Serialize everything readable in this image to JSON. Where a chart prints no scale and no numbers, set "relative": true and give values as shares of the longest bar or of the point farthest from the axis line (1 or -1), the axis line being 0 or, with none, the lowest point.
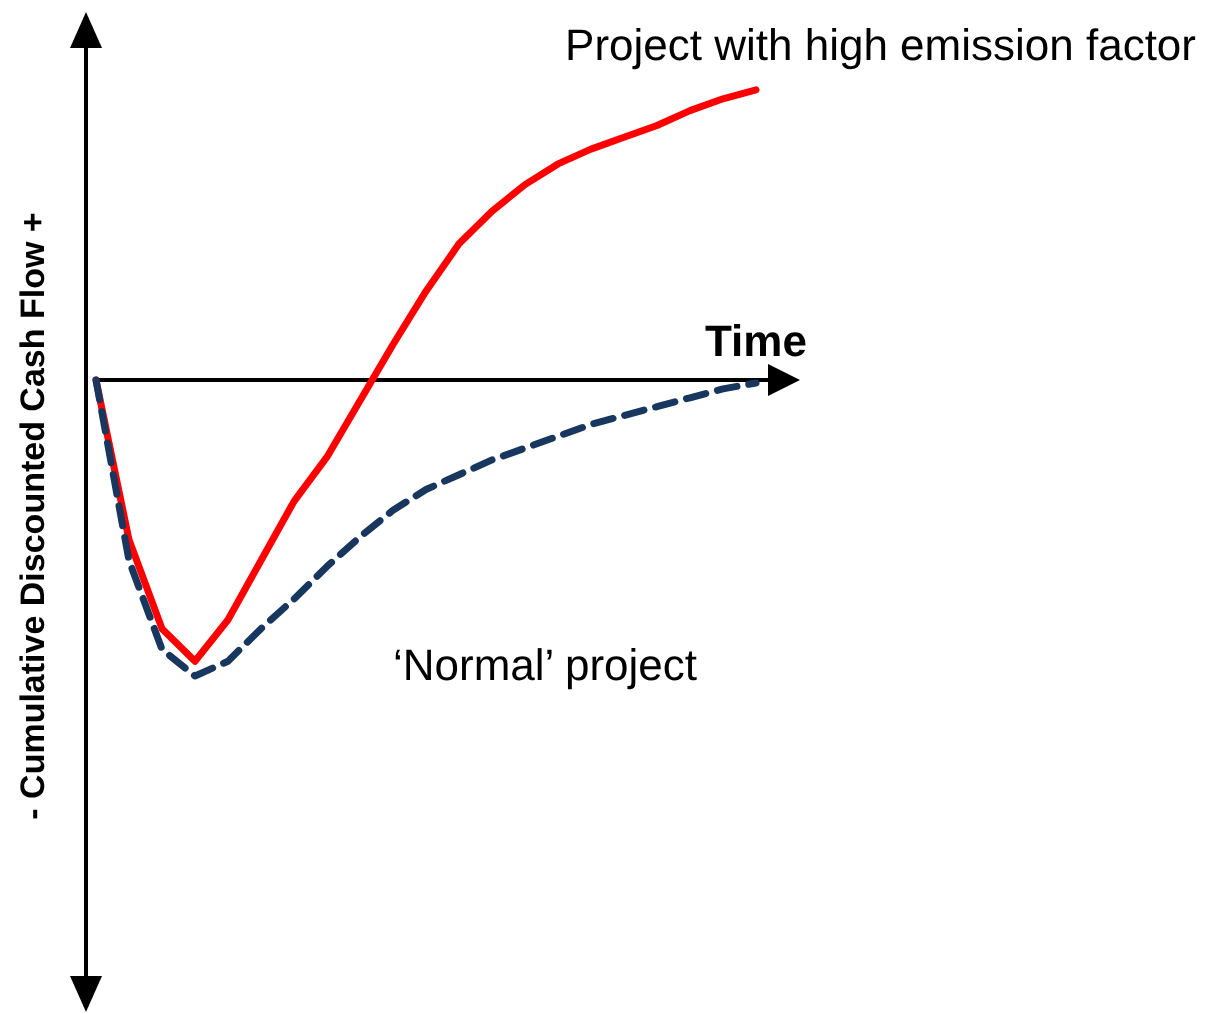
{
  "chart_data": {
    "type": "line",
    "relative": true,
    "xlabel": "Time",
    "ylabel": "- Cumulative Discounted Cash Flow +",
    "categories": [
      null,
      null,
      null,
      null,
      null,
      null,
      null,
      null,
      null,
      null,
      null,
      null,
      null,
      null,
      null,
      null,
      null,
      null,
      null,
      null,
      null
    ],
    "series": [
      {
        "name": "Project with high emission factor",
        "color": "#ff0000",
        "line_style": "solid",
        "values": [
          0,
          -0.54,
          -0.84,
          -0.95,
          -0.81,
          -0.61,
          -0.41,
          -0.26,
          -0.07,
          0.12,
          0.3,
          0.46,
          0.57,
          0.66,
          0.73,
          0.78,
          0.82,
          0.86,
          0.91,
          0.95,
          0.98
        ]
      },
      {
        "name": "‘Normal’ project",
        "color": "#17375e",
        "line_style": "dashed",
        "values": [
          0,
          -0.61,
          -0.91,
          -1,
          -0.95,
          -0.84,
          -0.74,
          -0.63,
          -0.53,
          -0.44,
          -0.37,
          -0.32,
          -0.27,
          -0.23,
          -0.19,
          -0.15,
          -0.12,
          -0.09,
          -0.06,
          -0.03,
          -0.01
        ]
      }
    ]
  }
}
